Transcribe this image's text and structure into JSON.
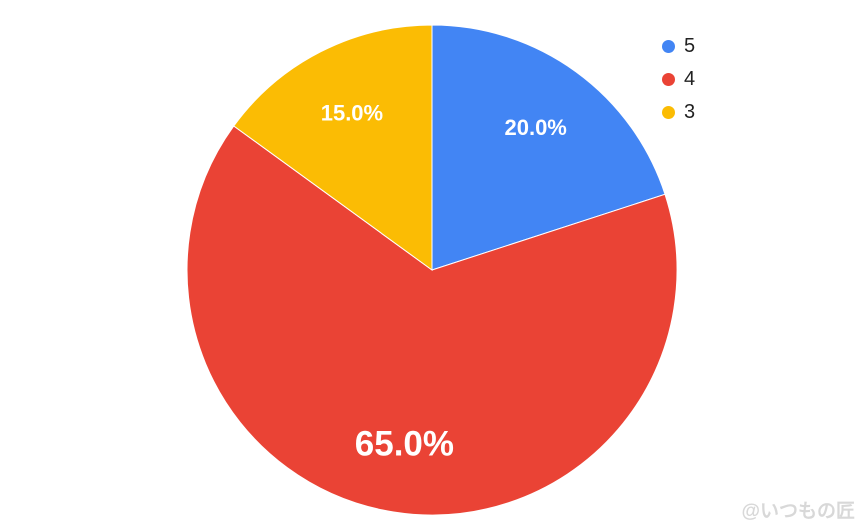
{
  "chart_data": {
    "type": "pie",
    "start": "top, clockwise",
    "slices": [
      {
        "name": "5",
        "value": 20.0,
        "label": "20.0%",
        "color": "#4285F4"
      },
      {
        "name": "4",
        "value": 65.0,
        "label": "65.0%",
        "color": "#EA4335"
      },
      {
        "name": "3",
        "value": 15.0,
        "label": "15.0%",
        "color": "#FBBC04"
      }
    ],
    "legend_position": "top-right"
  },
  "watermark": "@いつもの匠"
}
